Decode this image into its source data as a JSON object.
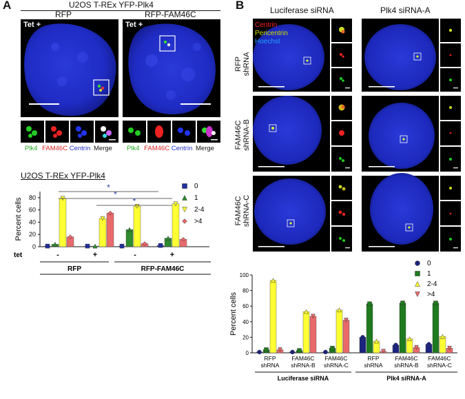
{
  "panelA": {
    "letter": "A",
    "title": "U2OS T-REx YFP-Plk4",
    "conditions": [
      "RFP",
      "RFP-FAM46C"
    ],
    "tet_label": "Tet +",
    "channel_labels": [
      "Plk4",
      "FAM46C",
      "Centrin",
      "Merge"
    ],
    "channel_colors": [
      "#22aa22",
      "#dd2222",
      "#2233cc",
      "#111111"
    ],
    "chart_title": "U2OS T-REx YFP-Plk4"
  },
  "panelB": {
    "letter": "B",
    "columns": [
      "Luciferase siRNA",
      "Plk4 siRNA-A"
    ],
    "rows": [
      {
        "l1": "RFP",
        "l2": "shRNA"
      },
      {
        "l1": "FAM46C",
        "l2": "shRNA-B"
      },
      {
        "l1": "FAM46C",
        "l2": "shRNA-C"
      }
    ],
    "channel_legend": [
      {
        "label": "Centrin",
        "color": "#ff2020"
      },
      {
        "label": "Pericentrin",
        "color": "#c8e000"
      },
      {
        "label": "Hoechst",
        "color": "#20a0ff"
      }
    ]
  },
  "chart_data": [
    {
      "type": "bar",
      "ylabel": "Percent cells",
      "ylim": [
        0,
        90
      ],
      "yticks": [
        0,
        20,
        40,
        60,
        80
      ],
      "tet_row_label": "tet",
      "tet_values": [
        "-",
        "+",
        "-",
        "+"
      ],
      "groups": [
        "RFP",
        "RFP-FAM46C"
      ],
      "significance": "*",
      "series": [
        {
          "name": "0",
          "color": "#1f2f9e",
          "marker": "square",
          "values": [
            1,
            1,
            1,
            2
          ]
        },
        {
          "name": "1",
          "color": "#2e8b2e",
          "marker": "triangle-up",
          "values": [
            4,
            1,
            28,
            14
          ]
        },
        {
          "name": "2-4",
          "color": "#ffff33",
          "marker": "triangle-down",
          "values": [
            79,
            46,
            66,
            70
          ]
        },
        {
          "name": ">4",
          "color": "#e86a6a",
          "marker": "diamond",
          "values": [
            16,
            55,
            5,
            12
          ]
        }
      ]
    },
    {
      "type": "bar",
      "ylabel": "Percent cells",
      "ylim": [
        0,
        100
      ],
      "yticks": [
        0,
        20,
        40,
        60,
        80,
        100
      ],
      "categories": [
        "RFP shRNA",
        "FAM46C shRNA-B",
        "FAM46C shRNA-C",
        "RFP shRNA",
        "FAM46C shRNA-B",
        "FAM46C shRNA-C"
      ],
      "category_lines": [
        [
          "RFP",
          "shRNA"
        ],
        [
          "FAM46C",
          "shRNA-B"
        ],
        [
          "FAM46C",
          "shRNA-C"
        ],
        [
          "RFP",
          "shRNA"
        ],
        [
          "FAM46C",
          "shRNA-B"
        ],
        [
          "FAM46C",
          "shRNA-C"
        ]
      ],
      "groups": [
        "Luciferase siRNA",
        "Plk4 siRNA-A"
      ],
      "series": [
        {
          "name": "0",
          "color": "#1a237e",
          "marker": "circle",
          "values": [
            1,
            1,
            1,
            20,
            10,
            11
          ]
        },
        {
          "name": "1",
          "color": "#1e7a1e",
          "marker": "square",
          "values": [
            4,
            3,
            6,
            63,
            64,
            64
          ]
        },
        {
          "name": "2-4",
          "color": "#ffff33",
          "marker": "triangle-up",
          "values": [
            93,
            53,
            55,
            15,
            18,
            21
          ]
        },
        {
          "name": ">4",
          "color": "#e86a6a",
          "marker": "triangle-down",
          "values": [
            4,
            47,
            42,
            2,
            7,
            6
          ]
        }
      ]
    }
  ]
}
